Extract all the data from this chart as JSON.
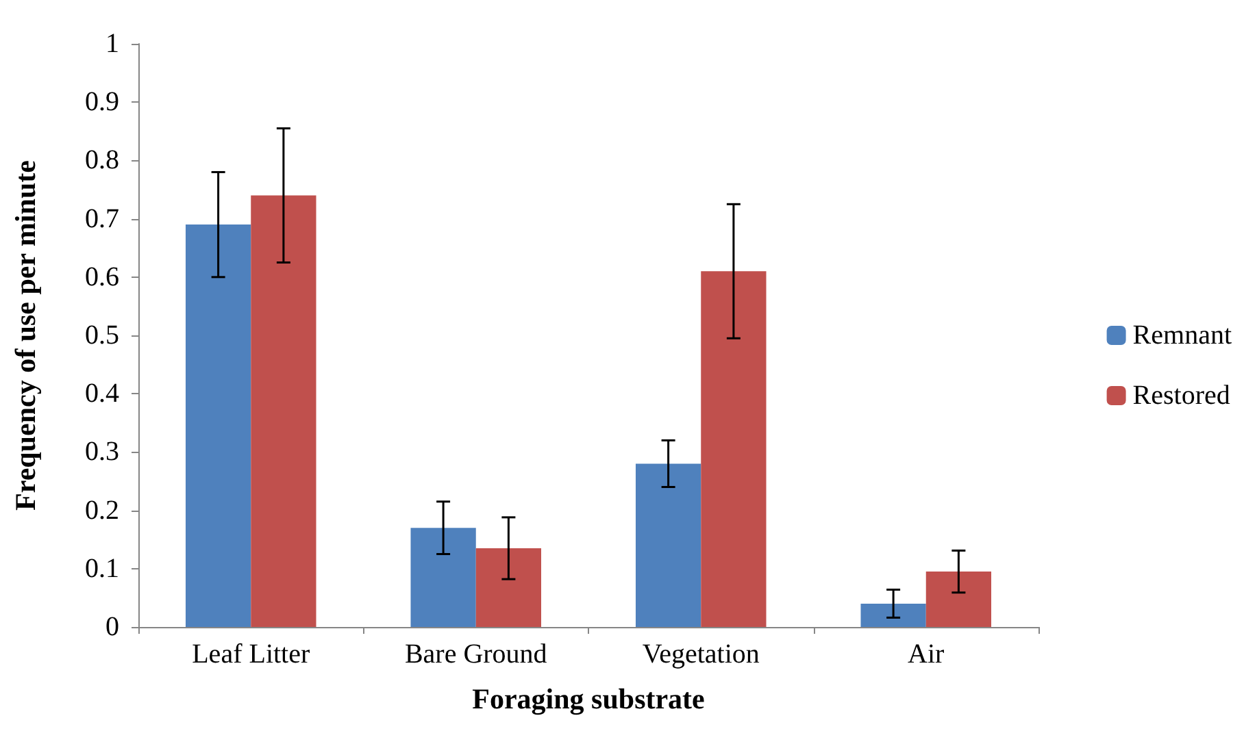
{
  "chart_data": {
    "type": "bar",
    "xlabel": "Foraging substrate",
    "ylabel": "Frequency of use per minute",
    "categories": [
      "Leaf Litter",
      "Bare Ground",
      "Vegetation",
      "Air"
    ],
    "series": [
      {
        "name": "Remnant",
        "color": "#4f81bd",
        "values": [
          0.69,
          0.17,
          0.28,
          0.04
        ],
        "errors": [
          0.09,
          0.045,
          0.04,
          0.024
        ]
      },
      {
        "name": "Restored",
        "color": "#c0504d",
        "values": [
          0.74,
          0.135,
          0.61,
          0.095
        ],
        "errors": [
          0.115,
          0.053,
          0.115,
          0.036
        ]
      }
    ],
    "ylim": [
      0,
      1
    ],
    "yticks": [
      0,
      0.1,
      0.2,
      0.3,
      0.4,
      0.5,
      0.6,
      0.7,
      0.8,
      0.9,
      1
    ],
    "grid": false,
    "legend": "right"
  }
}
